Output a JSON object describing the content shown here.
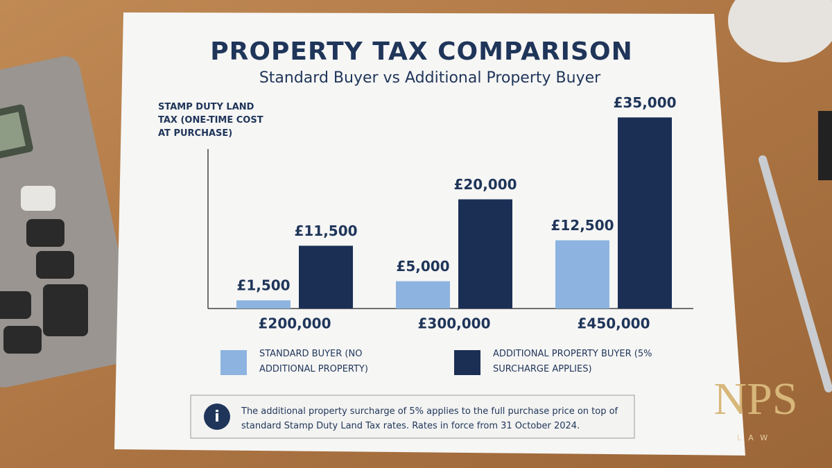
{
  "chart_data": {
    "type": "bar",
    "title": "PROPERTY TAX COMPARISON",
    "subtitle": "Standard Buyer vs Additional Property Buyer",
    "y_label": "STAMP DUTY LAND TAX (ONE-TIME COST AT PURCHASE)",
    "categories": [
      "£200,000",
      "£300,000",
      "£450,000"
    ],
    "series": [
      {
        "name": "STANDARD BUYER (NO ADDITIONAL PROPERTY)",
        "color": "#8db4e0",
        "values": [
          1500,
          5000,
          12500
        ],
        "value_labels": [
          "£1,500",
          "£5,000",
          "£12,500"
        ]
      },
      {
        "name": "ADDITIONAL PROPERTY BUYER (5% SURCHARGE APPLIES)",
        "color": "#1b2f55",
        "values": [
          11500,
          20000,
          35000
        ],
        "value_labels": [
          "£11,500",
          "£20,000",
          "£35,000"
        ]
      }
    ],
    "ylim": [
      0,
      40000
    ],
    "note": "The additional property surcharge of 5% applies to the full purchase price on top of standard Stamp Duty Land Tax rates. Rates in force from 31 October 2024."
  },
  "logo": {
    "mark": "NPS",
    "subtitle": "LAW"
  }
}
